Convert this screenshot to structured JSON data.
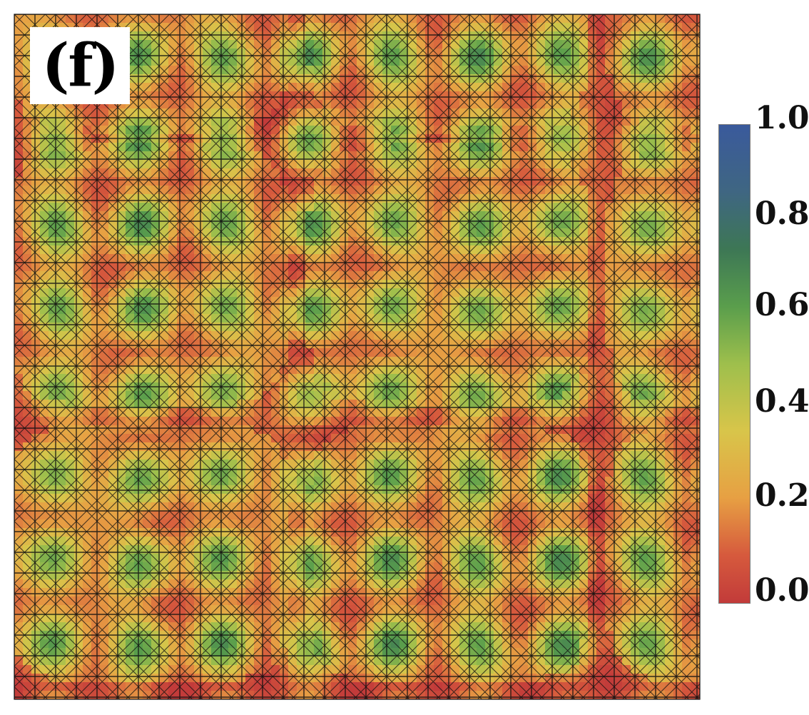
{
  "panel_label": "(f)",
  "chart_data": {
    "type": "heatmap",
    "title": "",
    "xlabel": "",
    "ylabel": "",
    "description_free": true,
    "colorbar": {
      "ticks": [
        "0.0",
        "0.2",
        "0.4",
        "0.6",
        "0.8",
        "1.0"
      ],
      "tick_values": [
        0.0,
        0.2,
        0.4,
        0.6,
        0.8,
        1.0
      ],
      "range": [
        0.0,
        1.0
      ],
      "colormap": [
        {
          "value": 0.0,
          "color": "#c23b3a"
        },
        {
          "value": 0.1,
          "color": "#d65a3d"
        },
        {
          "value": 0.22,
          "color": "#e7a043"
        },
        {
          "value": 0.36,
          "color": "#d8c54a"
        },
        {
          "value": 0.5,
          "color": "#9ebf4c"
        },
        {
          "value": 0.62,
          "color": "#5a9e4c"
        },
        {
          "value": 0.74,
          "color": "#3d7755"
        },
        {
          "value": 0.86,
          "color": "#3f6682"
        },
        {
          "value": 1.0,
          "color": "#3a5a9c"
        }
      ]
    },
    "grid": false,
    "legend": "none"
  }
}
